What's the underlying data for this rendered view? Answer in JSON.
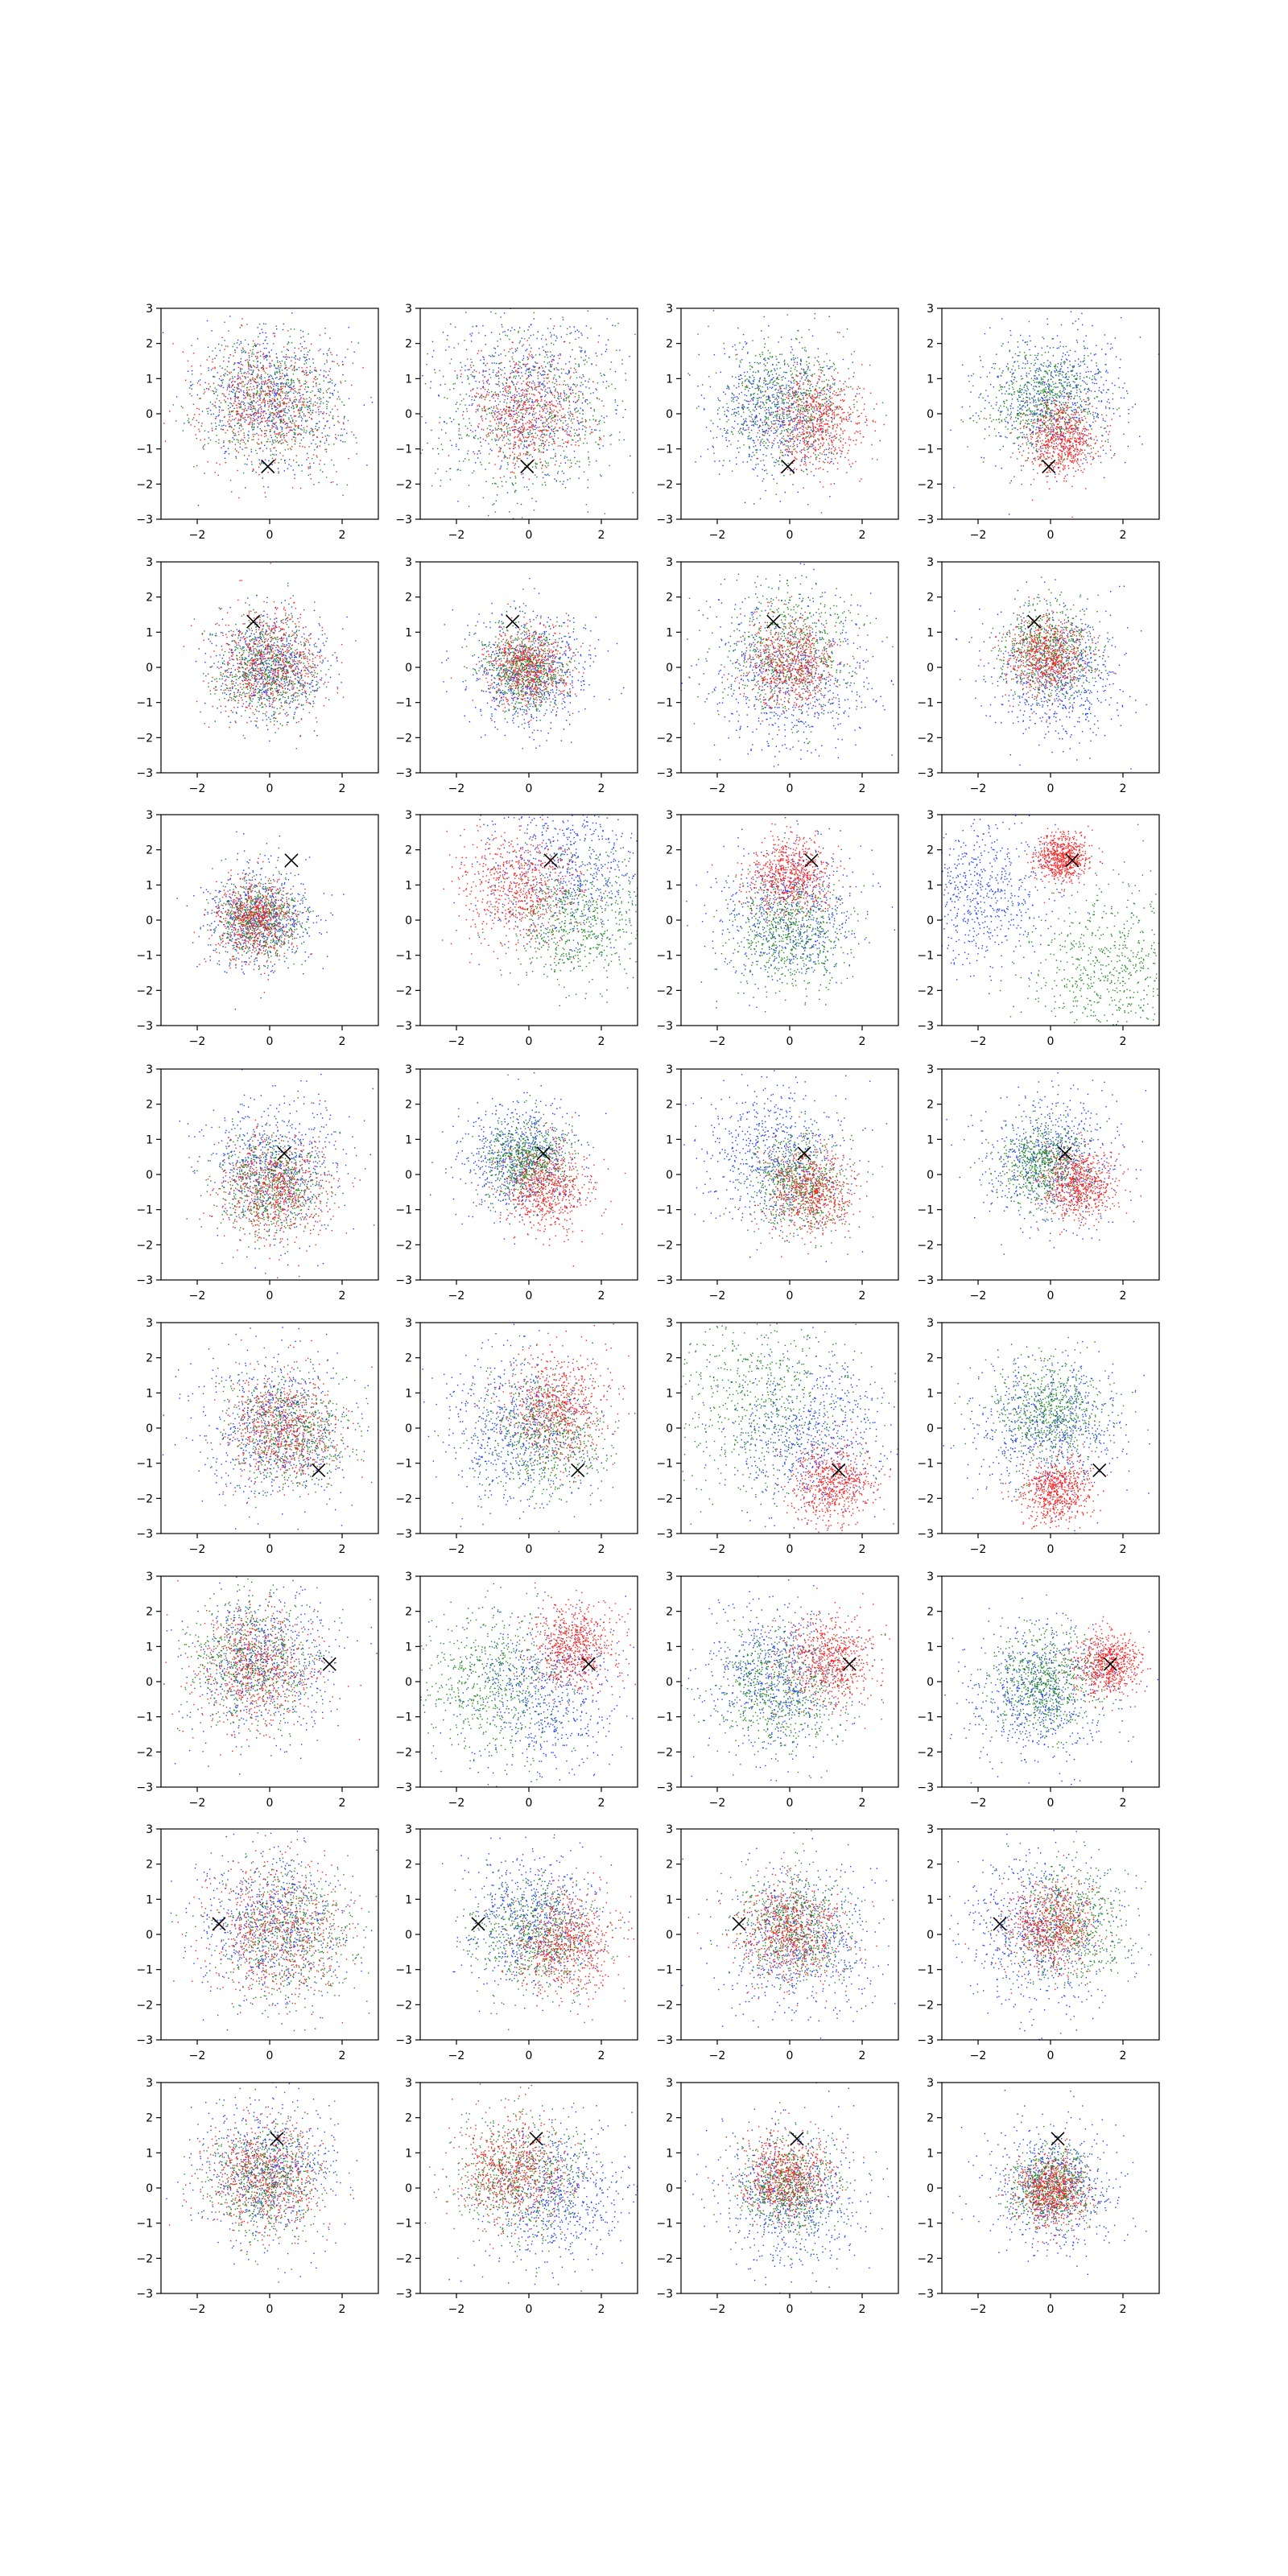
{
  "figure": {
    "rows": 8,
    "cols": 4,
    "xlim": [
      -3,
      3
    ],
    "ylim": [
      -3,
      3
    ],
    "x_ticks": [
      -2,
      0,
      2
    ],
    "y_ticks": [
      -3,
      -2,
      -1,
      0,
      1,
      2,
      3
    ],
    "tick_labels_x": [
      "−2",
      "0",
      "2"
    ],
    "tick_labels_y": [
      "−3",
      "−2",
      "−1",
      "0",
      "1",
      "2",
      "3"
    ],
    "marker_color": "#000000",
    "background": "#ffffff"
  },
  "chart_data": {
    "type": "scatter",
    "series_colors": {
      "blue": "#1f3cff",
      "green": "#1e8a1e",
      "red": "#ff1f1f"
    },
    "grid": false,
    "legend": "none",
    "rows": [
      {
        "marker": [
          -0.05,
          -1.5
        ],
        "panels": [
          {
            "blue": {
              "center": [
                0.0,
                0.4
              ],
              "spread": 1.0
            },
            "green": {
              "center": [
                0.1,
                0.4
              ],
              "spread": 0.95
            },
            "red": {
              "center": [
                -0.1,
                0.3
              ],
              "spread": 0.95
            }
          },
          {
            "blue": {
              "center": [
                0.0,
                0.5
              ],
              "spread": 1.2
            },
            "green": {
              "center": [
                0.0,
                0.0
              ],
              "spread": 1.35
            },
            "red": {
              "center": [
                0.0,
                0.1
              ],
              "spread": 0.8
            }
          },
          {
            "blue": {
              "center": [
                -0.4,
                0.1
              ],
              "spread": 0.95
            },
            "green": {
              "center": [
                -0.1,
                0.3
              ],
              "spread": 0.9
            },
            "red": {
              "center": [
                0.7,
                -0.2
              ],
              "spread": 0.7
            }
          },
          {
            "blue": {
              "center": [
                0.0,
                0.5
              ],
              "spread": 1.0
            },
            "green": {
              "center": [
                -0.2,
                0.3
              ],
              "spread": 0.75
            },
            "red": {
              "center": [
                0.3,
                -0.7
              ],
              "spread": 0.5
            }
          }
        ]
      },
      {
        "marker": [
          -0.45,
          1.3
        ],
        "panels": [
          {
            "blue": {
              "center": [
                0.0,
                0.0
              ],
              "spread": 0.75
            },
            "green": {
              "center": [
                -0.1,
                0.0
              ],
              "spread": 0.7
            },
            "red": {
              "center": [
                0.0,
                0.1
              ],
              "spread": 0.75
            }
          },
          {
            "blue": {
              "center": [
                0.0,
                -0.1
              ],
              "spread": 0.85
            },
            "green": {
              "center": [
                -0.1,
                0.0
              ],
              "spread": 0.6
            },
            "red": {
              "center": [
                0.0,
                0.0
              ],
              "spread": 0.55
            }
          },
          {
            "blue": {
              "center": [
                0.0,
                -0.2
              ],
              "spread": 1.15
            },
            "green": {
              "center": [
                0.0,
                0.5
              ],
              "spread": 0.95
            },
            "red": {
              "center": [
                0.0,
                0.1
              ],
              "spread": 0.65
            }
          },
          {
            "blue": {
              "center": [
                0.2,
                -0.2
              ],
              "spread": 0.95
            },
            "green": {
              "center": [
                0.0,
                0.4
              ],
              "spread": 0.65
            },
            "red": {
              "center": [
                -0.1,
                0.3
              ],
              "spread": 0.55
            }
          }
        ]
      },
      {
        "marker": [
          0.6,
          1.7
        ],
        "panels": [
          {
            "blue": {
              "center": [
                -0.3,
                0.1
              ],
              "spread": 0.75
            },
            "green": {
              "center": [
                -0.3,
                0.1
              ],
              "spread": 0.6
            },
            "red": {
              "center": [
                -0.4,
                0.0
              ],
              "spread": 0.55
            }
          },
          {
            "blue": {
              "center": [
                1.0,
                1.5
              ],
              "spread": 1.1
            },
            "green": {
              "center": [
                1.3,
                0.0
              ],
              "spread": 0.95
            },
            "red": {
              "center": [
                -0.3,
                0.9
              ],
              "spread": 0.8
            }
          },
          {
            "blue": {
              "center": [
                0.0,
                0.2
              ],
              "spread": 1.0
            },
            "green": {
              "center": [
                0.0,
                -0.3
              ],
              "spread": 0.8
            },
            "red": {
              "center": [
                0.0,
                1.3
              ],
              "spread": 0.55
            }
          },
          {
            "blue": {
              "center": [
                -2.0,
                0.8
              ],
              "spread": 1.0
            },
            "green": {
              "center": [
                1.6,
                -1.4
              ],
              "spread": 1.1
            },
            "red": {
              "center": [
                0.3,
                1.8
              ],
              "spread": 0.35
            }
          }
        ]
      },
      {
        "marker": [
          0.4,
          0.6
        ],
        "panels": [
          {
            "blue": {
              "center": [
                0.2,
                0.2
              ],
              "spread": 0.95
            },
            "green": {
              "center": [
                0.0,
                -0.3
              ],
              "spread": 0.75
            },
            "red": {
              "center": [
                0.1,
                -0.4
              ],
              "spread": 0.75
            }
          },
          {
            "blue": {
              "center": [
                -0.2,
                0.5
              ],
              "spread": 0.8
            },
            "green": {
              "center": [
                -0.1,
                0.4
              ],
              "spread": 0.6
            },
            "red": {
              "center": [
                0.5,
                -0.4
              ],
              "spread": 0.6
            }
          },
          {
            "blue": {
              "center": [
                -0.4,
                0.5
              ],
              "spread": 1.0
            },
            "green": {
              "center": [
                0.2,
                -0.2
              ],
              "spread": 0.7
            },
            "red": {
              "center": [
                0.6,
                -0.5
              ],
              "spread": 0.6
            }
          },
          {
            "blue": {
              "center": [
                0.0,
                0.5
              ],
              "spread": 0.95
            },
            "green": {
              "center": [
                -0.2,
                0.3
              ],
              "spread": 0.6
            },
            "red": {
              "center": [
                0.8,
                -0.3
              ],
              "spread": 0.5
            }
          }
        ]
      },
      {
        "marker": [
          1.35,
          -1.2
        ],
        "panels": [
          {
            "blue": {
              "center": [
                0.2,
                0.0
              ],
              "spread": 1.0
            },
            "green": {
              "center": [
                0.6,
                -0.1
              ],
              "spread": 0.85
            },
            "red": {
              "center": [
                0.4,
                0.0
              ],
              "spread": 0.8
            }
          },
          {
            "blue": {
              "center": [
                -0.3,
                0.0
              ],
              "spread": 1.1
            },
            "green": {
              "center": [
                0.4,
                -0.2
              ],
              "spread": 0.9
            },
            "red": {
              "center": [
                0.8,
                0.6
              ],
              "spread": 0.75
            }
          },
          {
            "blue": {
              "center": [
                0.6,
                -0.2
              ],
              "spread": 1.1
            },
            "green": {
              "center": [
                -0.8,
                0.7
              ],
              "spread": 1.35
            },
            "red": {
              "center": [
                1.2,
                -1.6
              ],
              "spread": 0.55
            }
          },
          {
            "blue": {
              "center": [
                0.0,
                0.0
              ],
              "spread": 1.0
            },
            "green": {
              "center": [
                0.0,
                0.5
              ],
              "spread": 0.8
            },
            "red": {
              "center": [
                0.2,
                -1.8
              ],
              "spread": 0.45
            }
          }
        ]
      },
      {
        "marker": [
          1.65,
          0.5
        ],
        "panels": [
          {
            "blue": {
              "center": [
                -0.1,
                0.6
              ],
              "spread": 1.05
            },
            "green": {
              "center": [
                -0.5,
                0.6
              ],
              "spread": 0.9
            },
            "red": {
              "center": [
                -0.4,
                0.4
              ],
              "spread": 0.85
            }
          },
          {
            "blue": {
              "center": [
                0.4,
                -0.4
              ],
              "spread": 1.1
            },
            "green": {
              "center": [
                -1.0,
                0.0
              ],
              "spread": 1.1
            },
            "red": {
              "center": [
                1.2,
                1.0
              ],
              "spread": 0.6
            }
          },
          {
            "blue": {
              "center": [
                -0.4,
                0.2
              ],
              "spread": 1.0
            },
            "green": {
              "center": [
                -0.3,
                -0.2
              ],
              "spread": 0.9
            },
            "red": {
              "center": [
                1.1,
                0.6
              ],
              "spread": 0.6
            }
          },
          {
            "blue": {
              "center": [
                -0.2,
                -0.3
              ],
              "spread": 1.0
            },
            "green": {
              "center": [
                -0.2,
                0.0
              ],
              "spread": 0.75
            },
            "red": {
              "center": [
                1.6,
                0.5
              ],
              "spread": 0.45
            }
          }
        ]
      },
      {
        "marker": [
          -1.4,
          0.3
        ],
        "panels": [
          {
            "blue": {
              "center": [
                0.0,
                0.2
              ],
              "spread": 1.05
            },
            "green": {
              "center": [
                0.5,
                0.0
              ],
              "spread": 0.95
            },
            "red": {
              "center": [
                0.2,
                0.1
              ],
              "spread": 0.95
            }
          },
          {
            "blue": {
              "center": [
                0.2,
                0.4
              ],
              "spread": 1.0
            },
            "green": {
              "center": [
                0.2,
                0.0
              ],
              "spread": 0.85
            },
            "red": {
              "center": [
                1.0,
                -0.3
              ],
              "spread": 0.7
            }
          },
          {
            "blue": {
              "center": [
                0.2,
                -0.2
              ],
              "spread": 1.05
            },
            "green": {
              "center": [
                0.2,
                0.2
              ],
              "spread": 0.8
            },
            "red": {
              "center": [
                0.0,
                0.1
              ],
              "spread": 0.7
            }
          },
          {
            "blue": {
              "center": [
                -0.4,
                0.0
              ],
              "spread": 1.1
            },
            "green": {
              "center": [
                0.5,
                0.2
              ],
              "spread": 0.85
            },
            "red": {
              "center": [
                0.0,
                0.2
              ],
              "spread": 0.6
            }
          }
        ]
      },
      {
        "marker": [
          0.2,
          1.4
        ],
        "panels": [
          {
            "blue": {
              "center": [
                0.0,
                0.5
              ],
              "spread": 0.95
            },
            "green": {
              "center": [
                -0.2,
                0.2
              ],
              "spread": 0.8
            },
            "red": {
              "center": [
                -0.2,
                0.3
              ],
              "spread": 0.8
            }
          },
          {
            "blue": {
              "center": [
                0.8,
                -0.3
              ],
              "spread": 1.0
            },
            "green": {
              "center": [
                -0.2,
                0.3
              ],
              "spread": 0.9
            },
            "red": {
              "center": [
                -0.4,
                0.5
              ],
              "spread": 0.75
            }
          },
          {
            "blue": {
              "center": [
                0.0,
                -0.3
              ],
              "spread": 1.0
            },
            "green": {
              "center": [
                0.0,
                0.0
              ],
              "spread": 0.7
            },
            "red": {
              "center": [
                -0.1,
                0.3
              ],
              "spread": 0.6
            }
          },
          {
            "blue": {
              "center": [
                0.1,
                0.1
              ],
              "spread": 0.9
            },
            "green": {
              "center": [
                0.0,
                0.0
              ],
              "spread": 0.55
            },
            "red": {
              "center": [
                0.0,
                -0.1
              ],
              "spread": 0.5
            }
          }
        ]
      }
    ]
  }
}
